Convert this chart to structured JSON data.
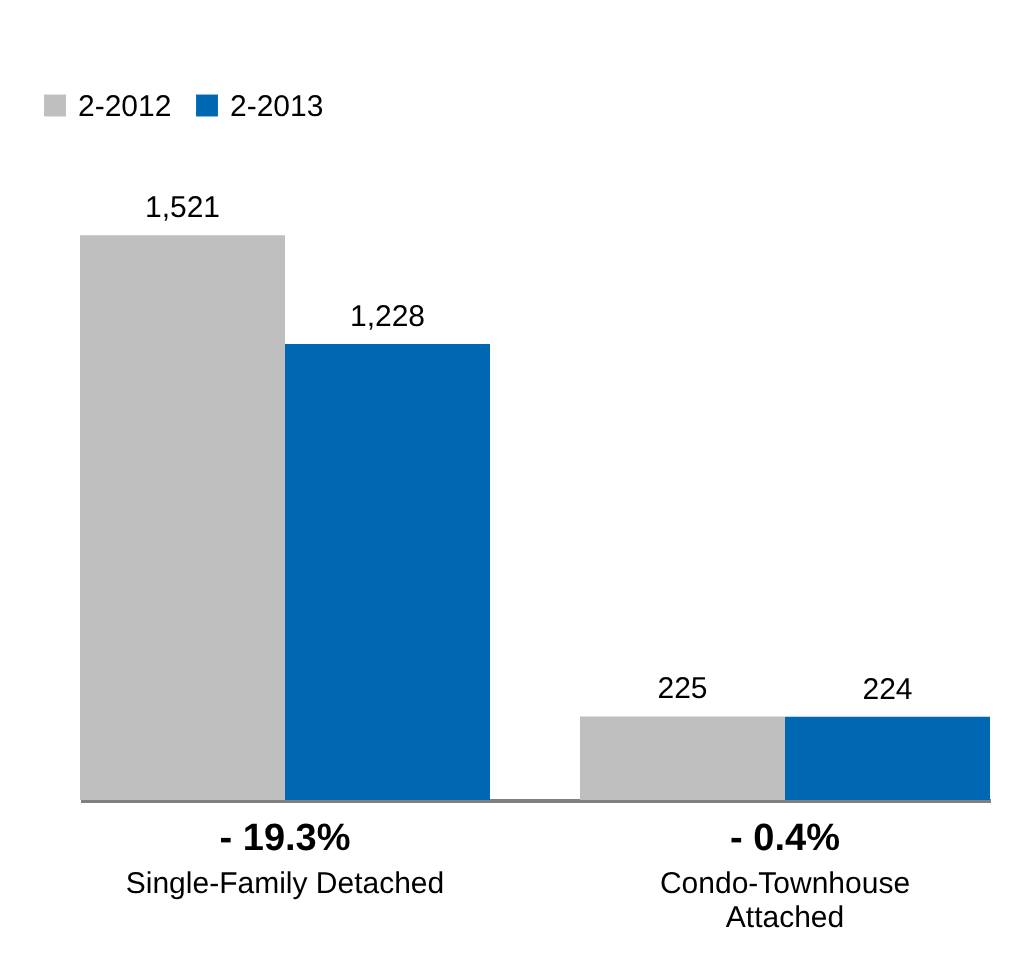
{
  "chart_data": {
    "type": "bar",
    "categories": [
      "Single-Family Detached",
      "Condo-Townhouse Attached"
    ],
    "series": [
      {
        "name": "2-2012",
        "color": "#bfbfbf",
        "values": [
          1521,
          225
        ],
        "value_labels": [
          "1,521",
          "225"
        ]
      },
      {
        "name": "2-2013",
        "color": "#0068b3",
        "values": [
          1228,
          224
        ],
        "value_labels": [
          "1,228",
          "224"
        ]
      }
    ],
    "annotations": [
      "- 19.3%",
      "- 0.4%"
    ],
    "legend": "top left",
    "grid": false
  }
}
